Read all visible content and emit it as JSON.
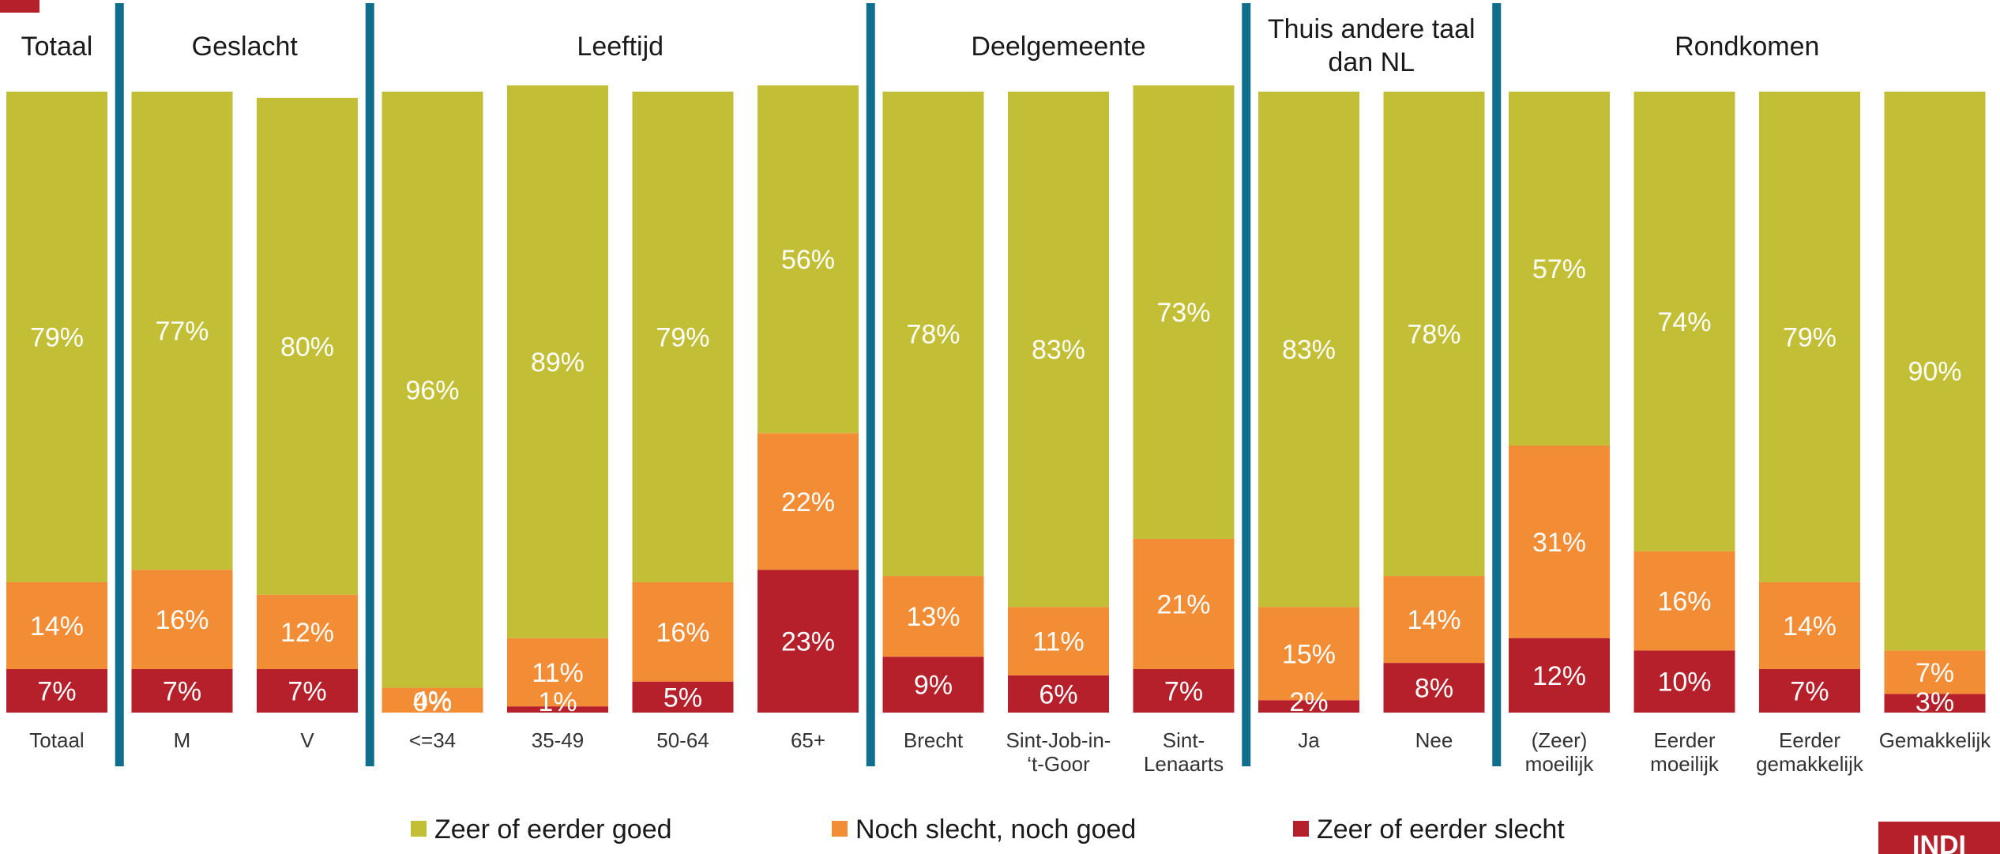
{
  "chart_data": {
    "type": "bar",
    "stacked": true,
    "normalized_percent": true,
    "groups": [
      {
        "title": "Totaal",
        "categories": [
          "Totaal"
        ]
      },
      {
        "title": "Geslacht",
        "categories": [
          "M",
          "V"
        ]
      },
      {
        "title": "Leeftijd",
        "categories": [
          "<=34",
          "35-49",
          "50-64",
          "65+"
        ]
      },
      {
        "title": "Deelgemeente",
        "categories": [
          "Brecht",
          "Sint-Job-in-‘t-Goor",
          "Sint-Lenaarts"
        ]
      },
      {
        "title": "Thuis andere taal dan NL",
        "categories": [
          "Ja",
          "Nee"
        ]
      },
      {
        "title": "Rondkomen",
        "categories": [
          "(Zeer) moeilijk",
          "Eerder moeilijk",
          "Eerder gemakkelijk",
          "Gemakkelijk"
        ]
      }
    ],
    "categories": [
      "Totaal",
      "M",
      "V",
      "<=34",
      "35-49",
      "50-64",
      "65+",
      "Brecht",
      "Sint-Job-in-‘t-Goor",
      "Sint-Lenaarts",
      "Ja",
      "Nee",
      "(Zeer) moeilijk",
      "Eerder moeilijk",
      "Eerder gemakkelijk",
      "Gemakkelijk"
    ],
    "series": [
      {
        "name": "Zeer of eerder slecht",
        "color": "#b5202a",
        "values": [
          7,
          7,
          7,
          0,
          1,
          5,
          23,
          9,
          6,
          7,
          2,
          8,
          12,
          10,
          7,
          3
        ]
      },
      {
        "name": "Noch slecht, noch goed",
        "color": "#f28c35",
        "values": [
          14,
          16,
          12,
          4,
          11,
          16,
          22,
          13,
          11,
          21,
          15,
          14,
          31,
          16,
          14,
          7
        ]
      },
      {
        "name": "Zeer of eerder goed",
        "color": "#c2bf37",
        "values": [
          79,
          77,
          80,
          96,
          89,
          79,
          56,
          78,
          83,
          73,
          83,
          78,
          57,
          74,
          79,
          90
        ]
      }
    ],
    "data_labels": [
      [
        "7%",
        "7%",
        "7%",
        "0%",
        "1%",
        "5%",
        "23%",
        "9%",
        "6%",
        "7%",
        "2%",
        "8%",
        "12%",
        "10%",
        "7%",
        "3%"
      ],
      [
        "14%",
        "16%",
        "12%",
        "4%",
        "11%",
        "16%",
        "22%",
        "13%",
        "11%",
        "21%",
        "15%",
        "14%",
        "31%",
        "16%",
        "14%",
        "7%"
      ],
      [
        "79%",
        "77%",
        "80%",
        "96%",
        "89%",
        "79%",
        "56%",
        "78%",
        "83%",
        "73%",
        "83%",
        "78%",
        "57%",
        "74%",
        "79%",
        "90%"
      ]
    ],
    "ylim": [
      0,
      100
    ],
    "grid": false,
    "legend": {
      "position": "bottom",
      "entries": [
        "Zeer of eerder goed",
        "Noch slecht, noch goed",
        "Zeer of eerder slecht"
      ]
    },
    "group_separator_color": "#0e6e8c"
  },
  "branding": {
    "corner_badge_text": "INDI",
    "corner_badge_color": "#b5202a"
  }
}
